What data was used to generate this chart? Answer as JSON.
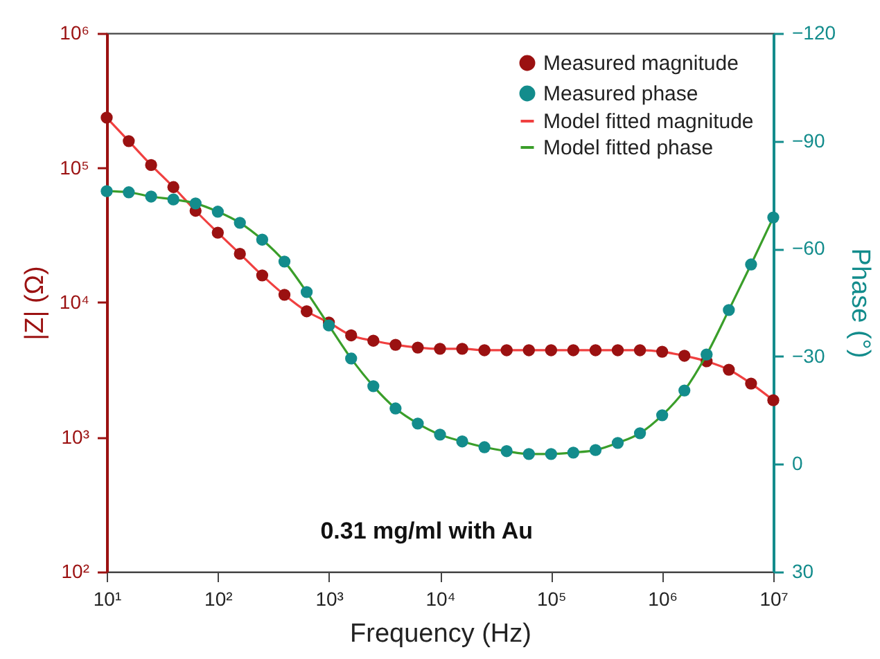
{
  "chart_data": {
    "type": "line",
    "xlabel": "Frequency (Hz)",
    "ylabel": "|Z| (Ω)",
    "y2label": "Phase (°)",
    "x": [
      10,
      15.8,
      25.1,
      39.8,
      63.1,
      100,
      158,
      251,
      398,
      631,
      1000,
      1585,
      2512,
      3981,
      6310,
      10000,
      15849,
      25119,
      39811,
      63096,
      100000,
      158489,
      251189,
      398107,
      630957,
      1000000,
      1584893,
      2511886,
      3981072,
      6309573,
      10000000
    ],
    "series": [
      {
        "name": "Measured magnitude",
        "type": "scatter",
        "marker": "circle",
        "color": "#9b1111",
        "values": [
          236000,
          158000,
          105000,
          72000,
          48000,
          33000,
          23000,
          15900,
          11400,
          8600,
          7100,
          5700,
          5200,
          4850,
          4630,
          4530,
          4530,
          4420,
          4420,
          4420,
          4420,
          4420,
          4420,
          4420,
          4420,
          4310,
          4020,
          3660,
          3170,
          2500,
          1880
        ]
      },
      {
        "name": "Measured phase",
        "type": "scatter",
        "marker": "circle",
        "axis": "y2",
        "color": "#138c8c",
        "values": [
          -76.0,
          -75.7,
          -74.5,
          -73.7,
          -72.6,
          -70.3,
          -67.2,
          -62.5,
          -56.4,
          -47.9,
          -38.6,
          -29.4,
          -21.7,
          -15.5,
          -11.3,
          -8.2,
          -6.3,
          -4.7,
          -3.6,
          -2.8,
          -2.8,
          -3.2,
          -3.9,
          -5.9,
          -8.6,
          -13.6,
          -20.5,
          -30.5,
          -42.9,
          -55.6,
          -68.7
        ]
      },
      {
        "name": "Model fitted magnitude",
        "color": "#f04040",
        "values": [
          236000,
          158000,
          105000,
          72000,
          48000,
          33000,
          23000,
          15900,
          11400,
          8600,
          7100,
          5700,
          5200,
          4850,
          4630,
          4530,
          4530,
          4420,
          4420,
          4420,
          4420,
          4420,
          4420,
          4420,
          4420,
          4310,
          4020,
          3660,
          3170,
          2500,
          1880
        ]
      },
      {
        "name": "Model fitted phase",
        "axis": "y2",
        "color": "#3a9e2a",
        "values": [
          -76.0,
          -75.7,
          -74.5,
          -73.7,
          -72.6,
          -70.3,
          -67.2,
          -62.5,
          -56.4,
          -47.9,
          -38.6,
          -29.4,
          -21.7,
          -15.5,
          -11.3,
          -8.2,
          -6.3,
          -4.7,
          -3.6,
          -2.8,
          -2.8,
          -3.2,
          -3.9,
          -5.9,
          -8.6,
          -13.6,
          -20.5,
          -30.5,
          -42.9,
          -55.6,
          -68.7
        ]
      }
    ],
    "xlim": [
      10,
      10000000
    ],
    "xticks": [
      {
        "value": 10,
        "label": "10¹"
      },
      {
        "value": 100,
        "label": "10²"
      },
      {
        "value": 1000,
        "label": "10³"
      },
      {
        "value": 10000,
        "label": "10⁴"
      },
      {
        "value": 100000,
        "label": "10⁵"
      },
      {
        "value": 1000000,
        "label": "10⁶"
      },
      {
        "value": 10000000,
        "label": "10⁷"
      }
    ],
    "ylim": [
      100,
      1000000
    ],
    "yticks": [
      {
        "value": 100,
        "label": "10²"
      },
      {
        "value": 1000,
        "label": "10³"
      },
      {
        "value": 10000,
        "label": "10⁴"
      },
      {
        "value": 100000,
        "label": "10⁵"
      },
      {
        "value": 1000000,
        "label": "10⁶"
      }
    ],
    "y2lim": [
      30,
      -120
    ],
    "y2ticks": [
      30,
      0,
      -30,
      -60,
      -90,
      -120
    ],
    "log": "xy",
    "grid": false,
    "legend": "top right",
    "line_style": "solid",
    "annotations": [
      "0.31 mg/ml with Au"
    ]
  }
}
